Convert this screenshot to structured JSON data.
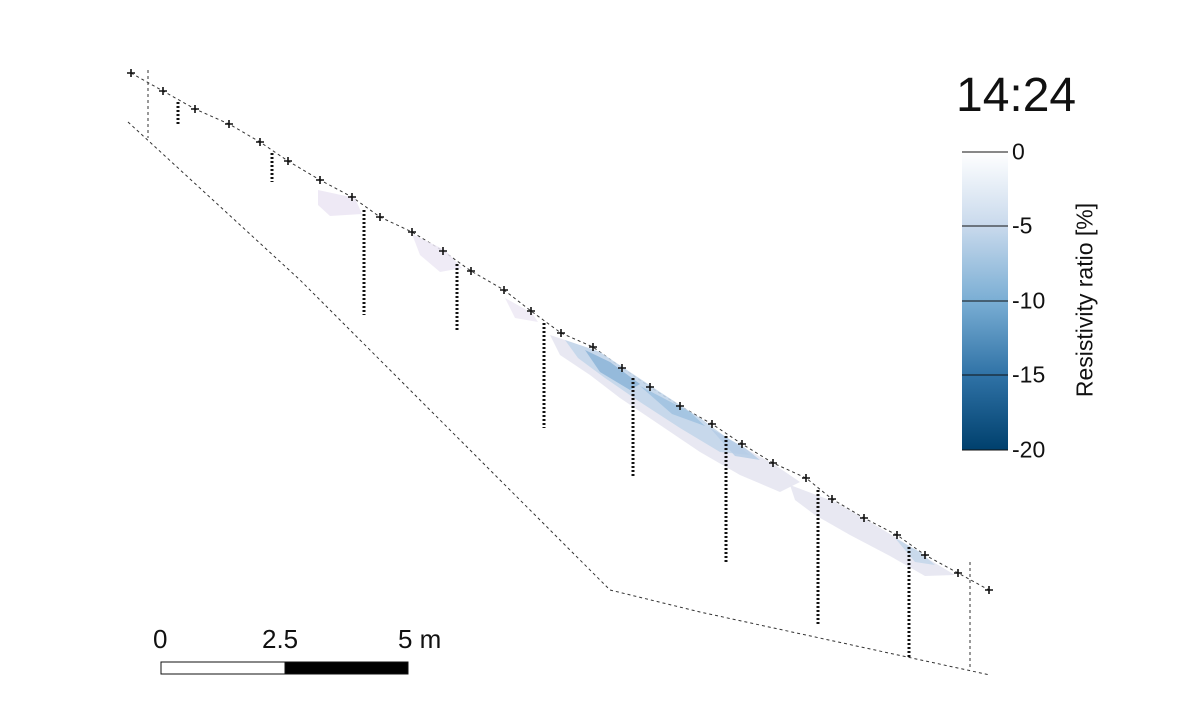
{
  "time_label": "14:24",
  "colorbar": {
    "title": "Resistivity ratio [%]",
    "ticks": [
      "0",
      "-5",
      "-10",
      "-15",
      "-20"
    ],
    "range": [
      -20,
      0
    ],
    "colors": [
      "#ffffff",
      "#c8d9ec",
      "#7aaed4",
      "#2f72a6",
      "#00406d"
    ]
  },
  "scale_bar": {
    "labels": [
      "0",
      "2.5",
      "5 m"
    ]
  },
  "electrodes": {
    "marker": "+",
    "count": 29
  },
  "boreholes": {
    "count": 10
  }
}
